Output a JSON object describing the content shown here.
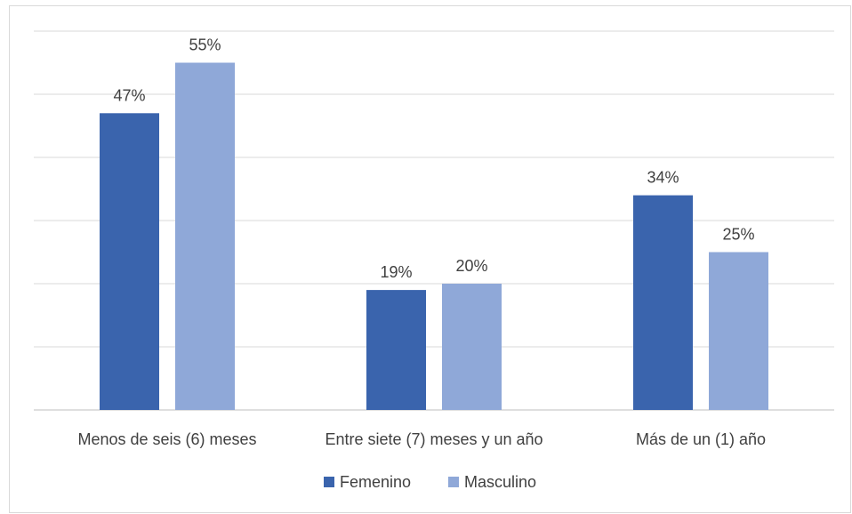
{
  "chart_data": {
    "type": "bar",
    "categories": [
      "Menos de seis (6) meses",
      "Entre siete (7) meses y un año",
      "Más de un (1) año"
    ],
    "series": [
      {
        "name": "Femenino",
        "values": [
          47,
          19,
          34
        ],
        "labels": [
          "47%",
          "19%",
          "34%"
        ],
        "color": "#3a64ad"
      },
      {
        "name": "Masculino",
        "values": [
          55,
          20,
          25
        ],
        "labels": [
          "55%",
          "20%",
          "25%"
        ],
        "color": "#8fa8d8"
      }
    ],
    "unit": "%",
    "ylim": [
      0,
      60
    ],
    "grid": true,
    "legend_position": "bottom"
  }
}
